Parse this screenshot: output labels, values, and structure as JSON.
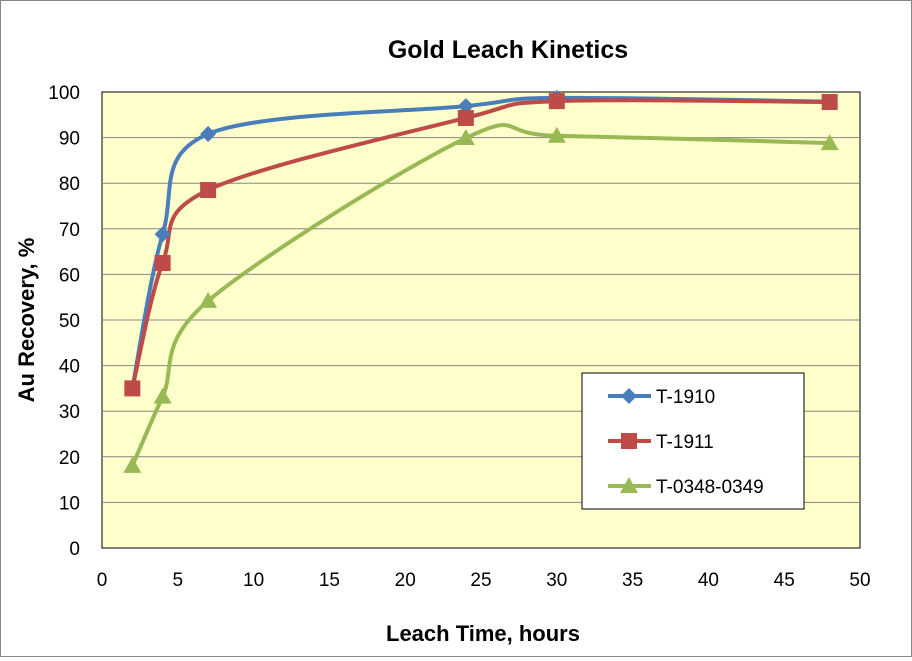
{
  "chart_data": {
    "type": "line",
    "title": "Gold Leach Kinetics",
    "xlabel": "Leach Time, hours",
    "ylabel": "Au Recovery, %",
    "xlim": [
      0,
      50
    ],
    "ylim": [
      0,
      100
    ],
    "xticks": [
      0,
      5,
      10,
      15,
      20,
      25,
      30,
      35,
      40,
      45,
      50
    ],
    "yticks": [
      0,
      10,
      20,
      30,
      40,
      50,
      60,
      70,
      80,
      90,
      100
    ],
    "grid": "horizontal",
    "legend_position": "bottom-right",
    "plot_background": "#FFFFCC",
    "series": [
      {
        "name": "T-1910",
        "color": "#4A7EBB",
        "marker": "diamond",
        "x": [
          2,
          4,
          7,
          24,
          30,
          48
        ],
        "y": [
          35,
          68.8,
          90.8,
          96.9,
          98.7,
          97.9
        ]
      },
      {
        "name": "T-1911",
        "color": "#BE4B48",
        "marker": "square",
        "x": [
          2,
          4,
          7,
          24,
          30,
          48
        ],
        "y": [
          35,
          62.5,
          78.5,
          94.3,
          98.0,
          97.8
        ]
      },
      {
        "name": "T-0348-0349",
        "color": "#98B954",
        "marker": "triangle",
        "x": [
          2,
          4,
          7,
          24,
          30,
          48
        ],
        "y": [
          18,
          33.2,
          54.2,
          89.9,
          90.4,
          88.8
        ]
      }
    ]
  }
}
